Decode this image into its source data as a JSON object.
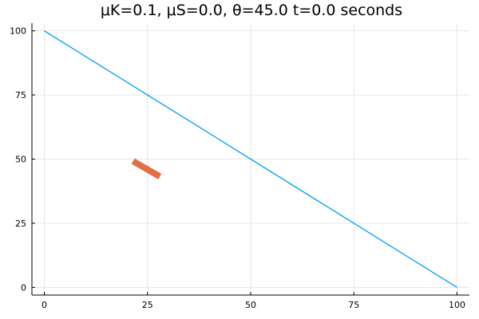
{
  "chart_data": {
    "type": "line",
    "title": "μK=0.1, μS=0.0, θ=45.0 t=0.0 seconds",
    "xlabel": "",
    "ylabel": "",
    "xlim": [
      -3,
      103
    ],
    "ylim": [
      -3,
      103
    ],
    "xticks": [
      0,
      25,
      50,
      75,
      100
    ],
    "yticks": [
      0,
      25,
      50,
      75,
      100
    ],
    "grid": true,
    "legend": "none",
    "series": [
      {
        "color": "#009AFA",
        "x": [
          0,
          100
        ],
        "y": [
          100,
          0
        ]
      },
      {
        "color": "#E26F46",
        "x": [
          21.5,
          28
        ],
        "y": [
          49.2,
          43.2
        ]
      }
    ]
  }
}
